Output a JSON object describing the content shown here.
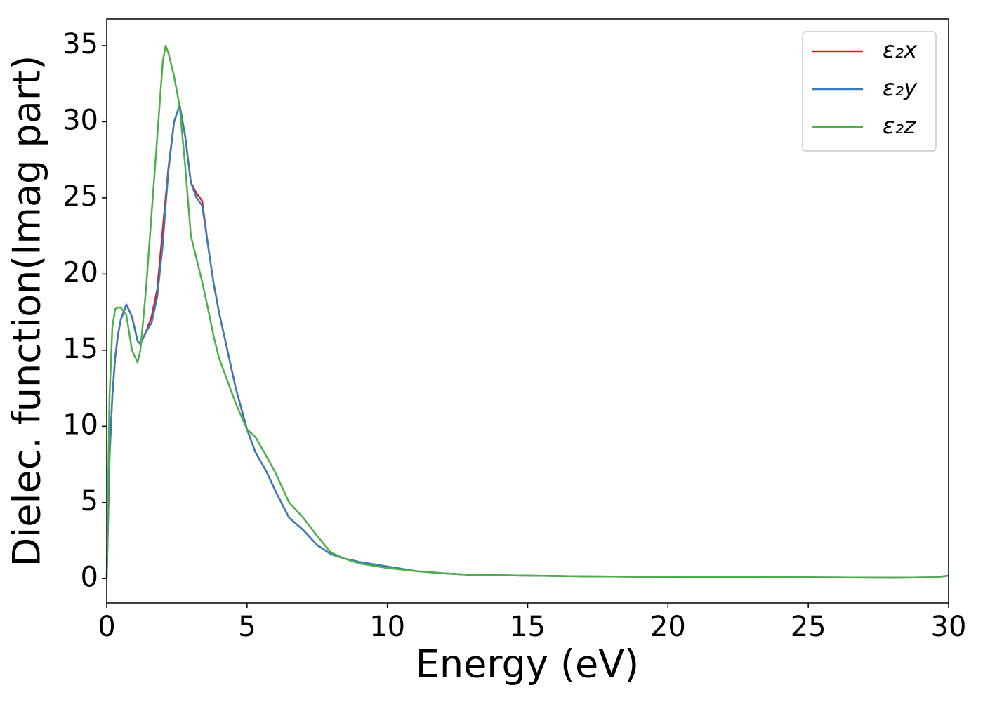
{
  "chart_data": {
    "type": "line",
    "xlabel": "Energy (eV)",
    "ylabel": "Dielec. function(Imag part)",
    "x": [
      0,
      0.1,
      0.2,
      0.3,
      0.4,
      0.5,
      0.7,
      0.9,
      1.1,
      1.2,
      1.4,
      1.6,
      1.8,
      2.0,
      2.1,
      2.2,
      2.4,
      2.6,
      2.8,
      3.0,
      3.2,
      3.4,
      3.6,
      3.8,
      4.0,
      4.3,
      4.6,
      5.0,
      5.3,
      5.7,
      6.0,
      6.5,
      7.0,
      7.5,
      8.0,
      8.5,
      9.0,
      10,
      11,
      12,
      13,
      15,
      17,
      20,
      22,
      25,
      28,
      29.5,
      30
    ],
    "series": [
      {
        "name": "ε₂x",
        "color": "#e41a1c",
        "values": [
          0,
          8,
          12,
          14.5,
          16,
          17,
          18,
          17.2,
          15.6,
          15.4,
          16.2,
          17.2,
          19,
          23,
          25,
          27,
          30,
          31.1,
          29,
          26,
          25.3,
          24.8,
          22,
          19.5,
          17.5,
          15,
          12.5,
          9.8,
          8.3,
          7,
          5.8,
          4,
          3.2,
          2.2,
          1.6,
          1.3,
          1.1,
          0.8,
          0.5,
          0.35,
          0.25,
          0.2,
          0.15,
          0.12,
          0.1,
          0.08,
          0.06,
          0.08,
          0.2
        ]
      },
      {
        "name": "ε₂y",
        "color": "#377eb8",
        "values": [
          0,
          8,
          12,
          14.5,
          16,
          17,
          18,
          17.2,
          15.6,
          15.4,
          16.2,
          16.8,
          18.5,
          22,
          24.5,
          26.8,
          30,
          31.1,
          29,
          26,
          25.0,
          24.5,
          22,
          19.5,
          17.5,
          15,
          12.5,
          9.8,
          8.3,
          7,
          5.8,
          4,
          3.2,
          2.2,
          1.6,
          1.3,
          1.1,
          0.8,
          0.5,
          0.35,
          0.25,
          0.2,
          0.15,
          0.12,
          0.1,
          0.08,
          0.06,
          0.08,
          0.2
        ]
      },
      {
        "name": "ε₂z",
        "color": "#4daf4a",
        "values": [
          0,
          12,
          16.5,
          17.7,
          17.8,
          17.8,
          17.3,
          15,
          14.2,
          15,
          19,
          24,
          29,
          34,
          35,
          34.5,
          33,
          31,
          27,
          22.5,
          21,
          19.5,
          17.8,
          16,
          14.5,
          13,
          11.5,
          9.8,
          9.3,
          8,
          7,
          5,
          4,
          2.8,
          1.7,
          1.3,
          1.0,
          0.7,
          0.5,
          0.35,
          0.25,
          0.2,
          0.15,
          0.12,
          0.1,
          0.08,
          0.06,
          0.08,
          0.2
        ]
      }
    ],
    "xlim": [
      0,
      30
    ],
    "xticks": [
      0,
      5,
      10,
      15,
      20,
      25,
      30
    ],
    "ylim": [
      -1.6,
      36.75
    ],
    "yticks": [
      0,
      5,
      10,
      15,
      20,
      25,
      30,
      35
    ],
    "grid": false,
    "legend": "upper right"
  }
}
